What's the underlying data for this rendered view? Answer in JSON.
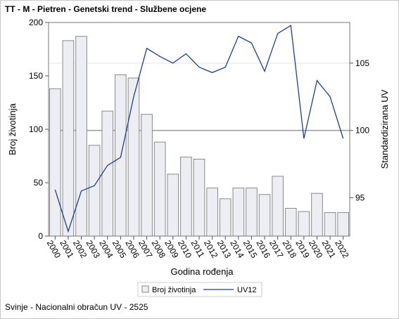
{
  "title": "TT - M - Pietren - Genetski trend - Službene ocjene",
  "footer": "Svinje - Nacionalni obračun UV - 2525",
  "chart_data": {
    "type": "bar+line",
    "xlabel": "Godina rođenja",
    "ylabel_left": "Broj životinja",
    "ylabel_right": "Standardizirana UV",
    "categories": [
      "2000",
      "2001",
      "2002",
      "2003",
      "2004",
      "2005",
      "2006",
      "2007",
      "2008",
      "2009",
      "2010",
      "2011",
      "2012",
      "2013",
      "2014",
      "2015",
      "2016",
      "2017",
      "2018",
      "2019",
      "2020",
      "2021",
      "2022"
    ],
    "series": [
      {
        "name": "Broj životinja",
        "axis": "left",
        "kind": "bar",
        "color": "#eceef4",
        "stroke": "#8a8a8a",
        "values": [
          138,
          183,
          187,
          85,
          117,
          151,
          148,
          114,
          88,
          58,
          74,
          72,
          45,
          35,
          45,
          45,
          39,
          56,
          26,
          23,
          40,
          22,
          22
        ]
      },
      {
        "name": "UV12",
        "axis": "right",
        "kind": "line",
        "color": "#1f3f8f",
        "values": [
          95.6,
          92.5,
          95.5,
          95.9,
          97.4,
          98.0,
          102.5,
          106.1,
          105.5,
          105.0,
          105.7,
          104.7,
          104.3,
          104.7,
          107.0,
          106.5,
          104.4,
          107.2,
          107.8,
          99.4,
          103.7,
          102.5,
          99.4
        ]
      }
    ],
    "ylim_left": [
      0,
      200
    ],
    "yticks_left": [
      0,
      50,
      100,
      150,
      200
    ],
    "ylim_right": [
      92.15,
      108.02
    ],
    "yticks_right": [
      95,
      100,
      105
    ],
    "reference_line_right": 100,
    "grid_right": [
      105
    ],
    "legend_position": "bottom"
  }
}
